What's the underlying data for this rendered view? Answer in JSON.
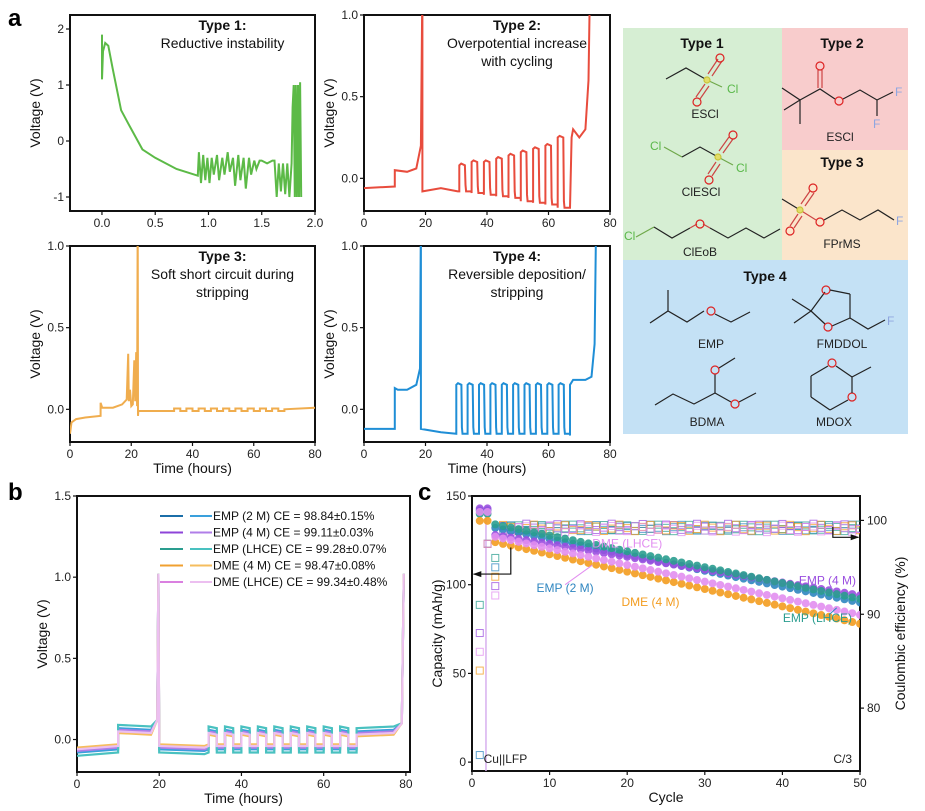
{
  "panel_letters": {
    "a": "a",
    "b": "b",
    "c": "c"
  },
  "chart_data": [
    {
      "id": "a1",
      "type": "line",
      "title_bold": "Type 1:",
      "title_lines": [
        "Reductive instability"
      ],
      "xlabel": "",
      "ylabel": "Voltage (V)",
      "xlim": [
        -0.3,
        2.0
      ],
      "ylim": [
        -1.25,
        2.25
      ],
      "xticks": [
        0.0,
        0.5,
        1.0,
        1.5,
        2.0
      ],
      "xtick_labels": [
        "0.0",
        "0.5",
        "1.0",
        "1.5",
        "2.0"
      ],
      "yticks": [
        -1,
        0,
        1,
        2
      ],
      "ytick_labels": [
        "-1",
        "0",
        "1",
        "2"
      ],
      "color": "#5cba47",
      "series": [
        {
          "name": "Type 1",
          "x": [
            0.0,
            0.0,
            0.01,
            0.03,
            0.06,
            0.1,
            0.18,
            0.25,
            0.38,
            0.5,
            0.7,
            0.9,
            0.91,
            0.93,
            0.95,
            0.97,
            0.99,
            1.01,
            1.03,
            1.05,
            1.08,
            1.1,
            1.13,
            1.15,
            1.18,
            1.2,
            1.23,
            1.25,
            1.28,
            1.3,
            1.33,
            1.35,
            1.38,
            1.4,
            1.43,
            1.45,
            1.48,
            1.5,
            1.55,
            1.6,
            1.62,
            1.64,
            1.66,
            1.68,
            1.7,
            1.72,
            1.74,
            1.76,
            1.78,
            1.79,
            1.8,
            1.81,
            1.82,
            1.83,
            1.84,
            1.85,
            1.86,
            1.87
          ],
          "y": [
            1.9,
            1.1,
            1.6,
            1.75,
            1.7,
            1.3,
            0.55,
            0.3,
            -0.15,
            -0.3,
            -0.5,
            -0.62,
            -0.2,
            -0.75,
            -0.25,
            -0.7,
            -0.3,
            -0.75,
            -0.3,
            -0.6,
            -0.25,
            -0.7,
            -0.3,
            -0.6,
            -0.2,
            -0.55,
            -0.3,
            -0.8,
            -0.25,
            -0.7,
            -0.3,
            -0.85,
            -0.3,
            -0.6,
            -0.35,
            -0.5,
            -0.35,
            -0.35,
            -0.4,
            -0.35,
            -0.35,
            -1.0,
            -0.4,
            -0.9,
            -0.4,
            -0.95,
            -0.4,
            -1.0,
            -0.4,
            0.6,
            1.0,
            -1.0,
            1.0,
            -1.0,
            1.0,
            -1.0,
            1.05,
            -1.0
          ]
        }
      ]
    },
    {
      "id": "a2",
      "type": "line",
      "title_bold": "Type 2:",
      "title_lines": [
        "Overpotential increase",
        "with cycling"
      ],
      "xlabel": "",
      "ylabel": "Voltage (V)",
      "xlim": [
        0,
        80
      ],
      "ylim": [
        -0.2,
        1.0
      ],
      "xticks": [
        0,
        20,
        40,
        60,
        80
      ],
      "xtick_labels": [
        "0",
        "20",
        "40",
        "60",
        "80"
      ],
      "yticks": [
        0.0,
        0.5,
        1.0
      ],
      "ytick_labels": [
        "0.0",
        "0.5",
        "1.0"
      ],
      "color": "#e84c3d",
      "series": [
        {
          "name": "Type 2",
          "cycle_peaks": [
            0.08,
            0.1,
            0.1,
            0.12,
            0.14,
            0.16,
            0.18,
            0.2,
            0.25
          ],
          "cycle_troughs": [
            -0.08,
            -0.09,
            -0.1,
            -0.11,
            -0.12,
            -0.14,
            -0.15,
            -0.16,
            -0.18
          ],
          "x": [
            0,
            10,
            10,
            14,
            17,
            18.5,
            19,
            19,
            25,
            30,
            66,
            67,
            68,
            70,
            72,
            73,
            73.5
          ],
          "y": [
            -0.06,
            -0.05,
            0.05,
            0.04,
            0.06,
            0.2,
            1.0,
            -0.08,
            -0.06,
            -0.08,
            -0.18,
            0.25,
            0.3,
            0.25,
            0.3,
            0.6,
            1.0
          ]
        }
      ]
    },
    {
      "id": "a3",
      "type": "line",
      "title_bold": "Type 3:",
      "title_lines": [
        "Soft short circuit during",
        "stripping"
      ],
      "xlabel": "Time (hours)",
      "ylabel": "Voltage (V)",
      "xlim": [
        0,
        80
      ],
      "ylim": [
        -0.2,
        1.0
      ],
      "xticks": [
        0,
        20,
        40,
        60,
        80
      ],
      "xtick_labels": [
        "0",
        "20",
        "40",
        "60",
        "80"
      ],
      "yticks": [
        0.0,
        0.5,
        1.0
      ],
      "ytick_labels": [
        "0.0",
        "0.5",
        "1.0"
      ],
      "color": "#f0ad4e",
      "series": [
        {
          "name": "Type 3",
          "x": [
            0,
            0.5,
            2,
            5,
            10,
            10,
            10.5,
            14,
            17,
            18.5,
            19,
            19.2,
            19.6,
            20,
            20.5,
            21,
            21.3,
            21.6,
            21.9,
            22.1,
            22.2,
            22.3,
            22.5,
            30,
            34,
            80
          ],
          "y": [
            -0.15,
            -0.08,
            -0.06,
            -0.05,
            -0.04,
            0.04,
            0.01,
            0.01,
            0.03,
            0.06,
            0.34,
            0.05,
            0.12,
            0.02,
            0.03,
            0.3,
            0.05,
            0.35,
            0.02,
            1.0,
            -0.04,
            -0.01,
            -0.01,
            -0.01,
            -0.01,
            0.01
          ],
          "square_wave_range": [
            34,
            70
          ],
          "square_wave_levels": [
            -0.01,
            0.0
          ]
        }
      ]
    },
    {
      "id": "a4",
      "type": "line",
      "title_bold": "Type 4:",
      "title_lines": [
        "Reversible deposition/",
        "stripping"
      ],
      "xlabel": "Time (hours)",
      "ylabel": "Voltage (V)",
      "xlim": [
        0,
        80
      ],
      "ylim": [
        -0.2,
        1.0
      ],
      "xticks": [
        0,
        20,
        40,
        60,
        80
      ],
      "xtick_labels": [
        "0",
        "20",
        "40",
        "60",
        "80"
      ],
      "yticks": [
        0.0,
        0.5,
        1.0
      ],
      "ytick_labels": [
        "0.0",
        "0.5",
        "1.0"
      ],
      "color": "#1f8ed6",
      "series": [
        {
          "name": "Type 4",
          "plate_level": 0.15,
          "strip_level": -0.15,
          "x": [
            0,
            10,
            10,
            11,
            14,
            17,
            18.2,
            18.5,
            18.5,
            25,
            30,
            67,
            67,
            68,
            72,
            74,
            75,
            75.5
          ],
          "y": [
            -0.12,
            -0.12,
            0.13,
            0.12,
            0.12,
            0.15,
            0.25,
            1.0,
            -0.12,
            -0.14,
            -0.15,
            -0.16,
            0.15,
            0.18,
            0.18,
            0.2,
            0.4,
            1.0
          ]
        }
      ]
    },
    {
      "id": "b",
      "type": "line",
      "xlabel": "Time (hours)",
      "ylabel": "Voltage (V)",
      "xlim": [
        0,
        81
      ],
      "ylim": [
        -0.2,
        1.5
      ],
      "xticks": [
        0,
        20,
        40,
        60,
        80
      ],
      "xtick_labels": [
        "0",
        "20",
        "40",
        "60",
        "80"
      ],
      "yticks": [
        0.0,
        0.5,
        1.0,
        1.5
      ],
      "ytick_labels": [
        "0.0",
        "0.5",
        "1.0",
        "1.5"
      ],
      "legend_position": "top-right",
      "series": [
        {
          "name": "EMP (2 M) CE = 98.84±0.15%",
          "color_dark": "#1b6ea8",
          "color_light": "#3aa0dc",
          "plate": 0.05,
          "strip": -0.06
        },
        {
          "name": "EMP (4 M) CE = 99.11±0.03%",
          "color_dark": "#8e44d8",
          "color_light": "#b07ee8",
          "plate": 0.04,
          "strip": -0.05
        },
        {
          "name": "EMP (LHCE) CE = 99.28±0.07%",
          "color_dark": "#2a9d8f",
          "color_light": "#49c1c0",
          "plate": 0.07,
          "strip": -0.08
        },
        {
          "name": "DME (4 M) CE = 98.47±0.08%",
          "color_dark": "#f0a030",
          "color_light": "#f5bd5e",
          "plate": 0.02,
          "strip": -0.03
        },
        {
          "name": "DME (LHCE) CE = 99.34±0.48%",
          "color_dark": "#da80e0",
          "color_light": "#ecbff0",
          "plate": 0.03,
          "strip": -0.04
        }
      ]
    },
    {
      "id": "c",
      "type": "scatter",
      "xlabel": "Cycle",
      "ylabel": "Capacity (mAh/g)",
      "y2label": "Coulombic efficiency (%)",
      "xlim": [
        0,
        50
      ],
      "ylim": [
        -5,
        150
      ],
      "y2lim": [
        73.3,
        102.6
      ],
      "xticks": [
        0,
        10,
        20,
        30,
        40,
        50
      ],
      "xtick_labels": [
        "0",
        "10",
        "20",
        "30",
        "40",
        "50"
      ],
      "yticks": [
        0,
        50,
        100,
        150
      ],
      "ytick_labels": [
        "0",
        "50",
        "100",
        "150"
      ],
      "y2ticks": [
        80,
        90,
        100
      ],
      "y2tick_labels": [
        "80",
        "90",
        "100"
      ],
      "corner_labels": {
        "left": "Cu||LFP",
        "right": "C/3"
      },
      "series": [
        {
          "name": "EMP (2 M)",
          "color": "#2f86c0",
          "label_color": "#2f86c0",
          "cap_start": 132,
          "cap_end": 90,
          "ce_mean": 99.2
        },
        {
          "name": "EMP (4 M)",
          "color": "#9b4fe0",
          "label_color": "#9b4fe0",
          "cap_start": 128,
          "cap_end": 94,
          "ce_mean": 99.3
        },
        {
          "name": "EMP (LHCE)",
          "color": "#2a9d8f",
          "label_color": "#2a9d8f",
          "cap_start": 134,
          "cap_end": 92,
          "ce_mean": 99.2
        },
        {
          "name": "DME (4 M)",
          "color": "#f39c1f",
          "label_color": "#f39c1f",
          "cap_start": 124,
          "cap_end": 78,
          "ce_mean": 99.2
        },
        {
          "name": "DME (LHCE)",
          "color": "#e28ef0",
          "label_color": "#e28ef0",
          "cap_start": 127,
          "cap_end": 83,
          "ce_mean": 99.1
        }
      ],
      "annotations": [
        "EMP (LHCE)",
        "EMP (4 M)",
        "DME (LHCE)",
        "DME (4 M)",
        "EMP (2 M)"
      ]
    }
  ],
  "molecule_panel": {
    "groups": [
      {
        "title": "Type 1",
        "color": "#d6eed3",
        "molecules": [
          "ESCl",
          "ClESCl",
          "ClEoB"
        ]
      },
      {
        "title": "Type 2",
        "color": "#f8cccc",
        "molecules": [
          "ESCl"
        ]
      },
      {
        "title": "Type 3",
        "color": "#fbe5cb",
        "molecules": [
          "FPrMS"
        ]
      },
      {
        "title": "Type 4",
        "color": "#c4e1f5",
        "molecules": [
          "EMP",
          "FMDDOL",
          "BDMA",
          "MDOX"
        ]
      }
    ],
    "atom_labels": {
      "Cl": "Cl",
      "F": "F"
    }
  }
}
